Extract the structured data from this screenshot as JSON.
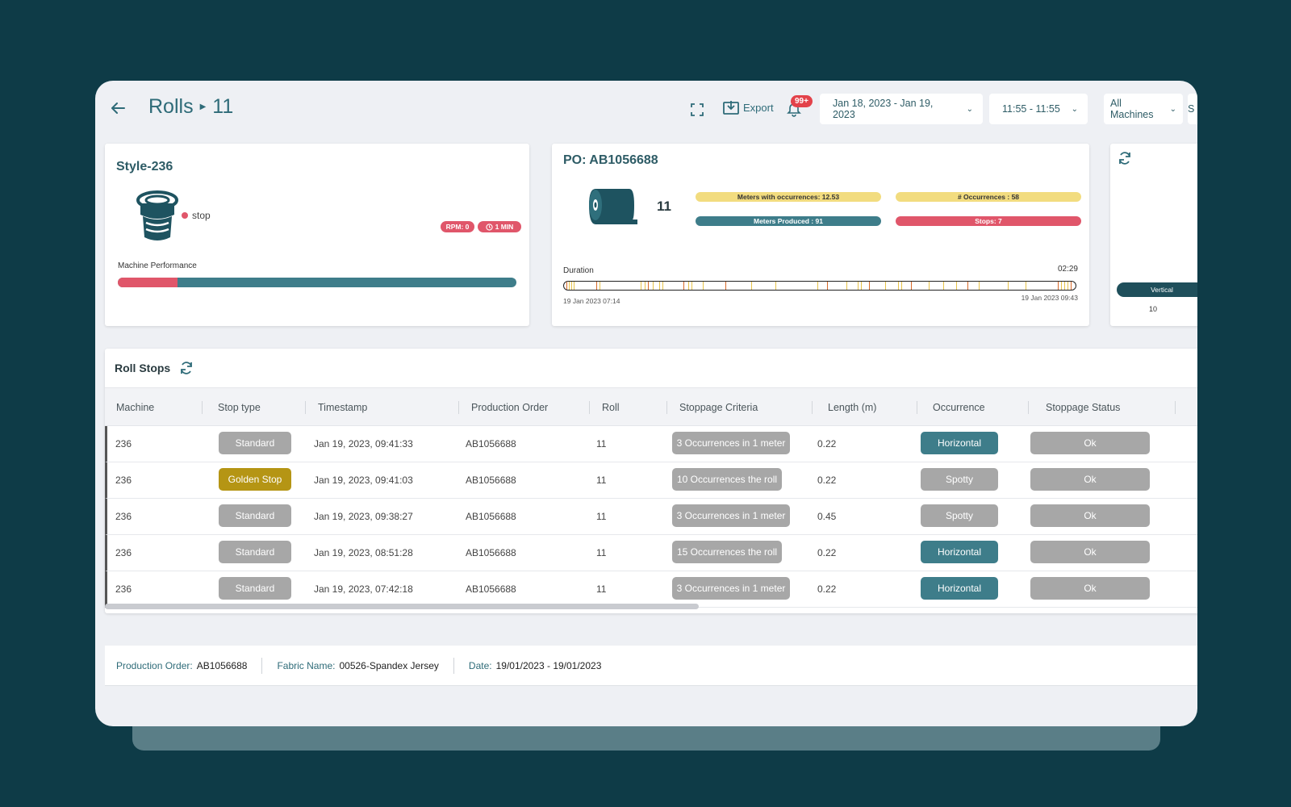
{
  "header": {
    "title": "Rolls",
    "roll_number": "11",
    "export_label": "Export",
    "notification_badge": "99+",
    "date_range": "Jan 18, 2023 - Jan 19, 2023",
    "time_range": "11:55 - 11:55",
    "machines_filter": "All Machines",
    "extra_filter": "S"
  },
  "style_card": {
    "title": "Style-236",
    "status": "stop",
    "rpm": "RPM: 0",
    "duration": "1 MIN",
    "performance_label": "Machine Performance",
    "performance_stop_fraction": 0.15
  },
  "po_card": {
    "title": "PO: AB1056688",
    "roll_count": "11",
    "meters_with_occurrences": "Meters with occurrences: 12.53",
    "occurrences": "# Occurrences : 58",
    "meters_produced": "Meters Produced : 91",
    "stops": "Stops: 7",
    "duration_label": "Duration",
    "duration_value": "02:29",
    "start_time": "19 Jan 2023 07:14",
    "end_time": "19 Jan 2023 09:43"
  },
  "side_card": {
    "pill": "Vertical",
    "value": "10"
  },
  "roll_stops": {
    "title": "Roll Stops",
    "columns": [
      "Machine",
      "Stop type",
      "Timestamp",
      "Production Order",
      "Roll",
      "Stoppage Criteria",
      "Length (m)",
      "Occurrence",
      "Stoppage Status"
    ],
    "rows": [
      {
        "machine": "236",
        "stop_type": "Standard",
        "timestamp": "Jan 19, 2023, 09:41:33",
        "order": "AB1056688",
        "roll": "11",
        "criteria": "3 Occurrences in 1 meter",
        "length": "0.22",
        "occurrence": "Horizontal",
        "status": "Ok"
      },
      {
        "machine": "236",
        "stop_type": "Golden Stop",
        "timestamp": "Jan 19, 2023, 09:41:03",
        "order": "AB1056688",
        "roll": "11",
        "criteria": "10 Occurrences the roll",
        "length": "0.22",
        "occurrence": "Spotty",
        "status": "Ok"
      },
      {
        "machine": "236",
        "stop_type": "Standard",
        "timestamp": "Jan 19, 2023, 09:38:27",
        "order": "AB1056688",
        "roll": "11",
        "criteria": "3 Occurrences in 1 meter",
        "length": "0.45",
        "occurrence": "Spotty",
        "status": "Ok"
      },
      {
        "machine": "236",
        "stop_type": "Standard",
        "timestamp": "Jan 19, 2023, 08:51:28",
        "order": "AB1056688",
        "roll": "11",
        "criteria": "15 Occurrences the roll",
        "length": "0.22",
        "occurrence": "Horizontal",
        "status": "Ok"
      },
      {
        "machine": "236",
        "stop_type": "Standard",
        "timestamp": "Jan 19, 2023, 07:42:18",
        "order": "AB1056688",
        "roll": "11",
        "criteria": "3 Occurrences in 1 meter",
        "length": "0.22",
        "occurrence": "Horizontal",
        "status": "Ok"
      }
    ]
  },
  "footer": {
    "production_order_label": "Production Order:",
    "production_order": "AB1056688",
    "fabric_label": "Fabric Name:",
    "fabric": "00526-Spandex Jersey",
    "date_label": "Date:",
    "date": "19/01/2023 - 19/01/2023"
  },
  "colors": {
    "background": "#0e3b47",
    "teal": "#3e7d8a",
    "red": "#e0566a",
    "yellow": "#f2dc7f",
    "gold": "#b59514",
    "grey_chip": "#a7a7a7"
  }
}
